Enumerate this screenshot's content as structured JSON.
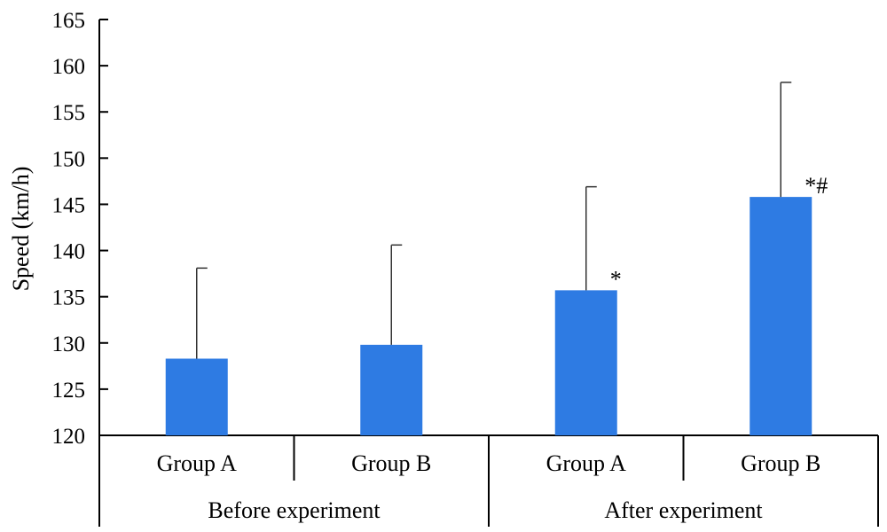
{
  "chart_data": {
    "type": "bar",
    "title": "",
    "xlabel": "",
    "ylabel": "Speed (km/h)",
    "ylim": [
      120,
      165
    ],
    "yticks": [
      120,
      125,
      130,
      135,
      140,
      145,
      150,
      155,
      160,
      165
    ],
    "grid": false,
    "bar_color": "#2e7be3",
    "groups": [
      {
        "label": "Before experiment",
        "members": [
          0,
          1
        ]
      },
      {
        "label": "After experiment",
        "members": [
          2,
          3
        ]
      }
    ],
    "categories": [
      "Group A",
      "Group B",
      "Group A",
      "Group B"
    ],
    "values": [
      128.3,
      129.8,
      135.7,
      145.8
    ],
    "error_upper": [
      138.1,
      140.6,
      146.9,
      158.2
    ],
    "annotations": [
      "",
      "",
      "*",
      "*#"
    ]
  }
}
